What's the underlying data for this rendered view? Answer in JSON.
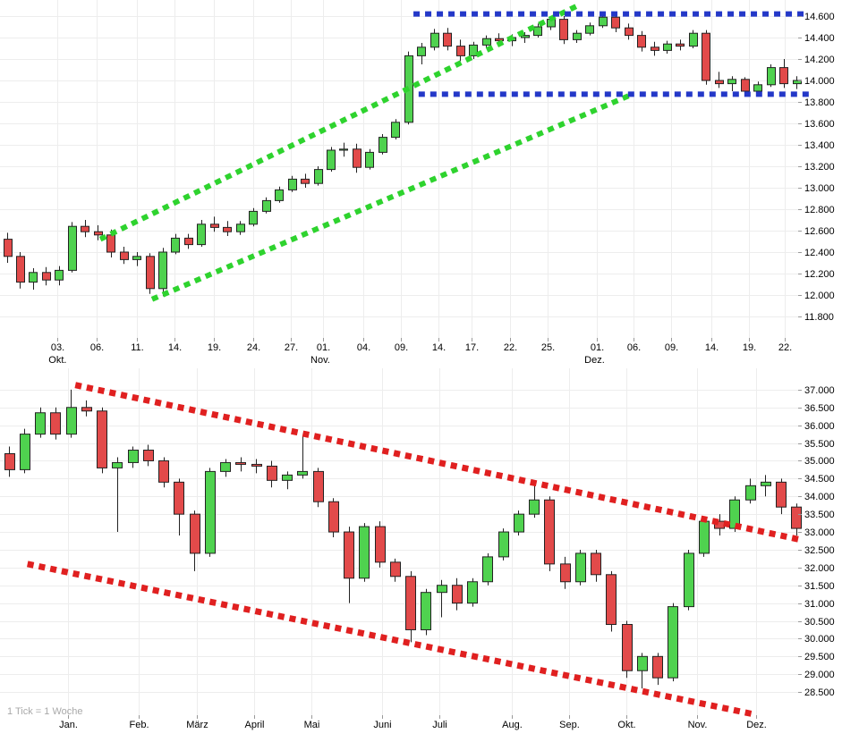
{
  "background": "#ffffff",
  "chart_data": [
    {
      "type": "candlestick",
      "name": "upper-chart",
      "title": "",
      "ylim": [
        11650,
        14750
      ],
      "grid": true,
      "y_axis_side": "right",
      "y_ticks": [
        "14.600",
        "14.400",
        "14.200",
        "14.000",
        "13.800",
        "13.600",
        "13.400",
        "13.200",
        "13.000",
        "12.800",
        "12.600",
        "12.400",
        "12.200",
        "12.000",
        "11.800"
      ],
      "x_ticks": [
        {
          "label": "03.",
          "i": 3.9
        },
        {
          "label": "06.",
          "i": 6.9
        },
        {
          "label": "11.",
          "i": 10.0
        },
        {
          "label": "14.",
          "i": 12.9
        },
        {
          "label": "19.",
          "i": 16.0
        },
        {
          "label": "24.",
          "i": 19.0
        },
        {
          "label": "27.",
          "i": 21.9
        },
        {
          "label": "01.",
          "i": 24.4
        },
        {
          "label": "04.",
          "i": 27.5
        },
        {
          "label": "09.",
          "i": 30.4
        },
        {
          "label": "14.",
          "i": 33.3
        },
        {
          "label": "17.",
          "i": 35.9
        },
        {
          "label": "22.",
          "i": 38.9
        },
        {
          "label": "25.",
          "i": 41.8
        },
        {
          "label": "01.",
          "i": 45.6
        },
        {
          "label": "06.",
          "i": 48.4
        },
        {
          "label": "09.",
          "i": 51.3
        },
        {
          "label": "14.",
          "i": 54.4
        },
        {
          "label": "19.",
          "i": 57.3
        },
        {
          "label": "22.",
          "i": 60.1
        }
      ],
      "month_labels": [
        {
          "label": "Okt.",
          "i": 3.9
        },
        {
          "label": "Nov.",
          "i": 24.2
        },
        {
          "label": "Dez.",
          "i": 45.4
        }
      ],
      "colors": {
        "up": "#4fd24f",
        "down": "#e24a4a"
      },
      "candles": [
        [
          12520,
          12580,
          12300,
          12360
        ],
        [
          12360,
          12400,
          12060,
          12120
        ],
        [
          12120,
          12250,
          12050,
          12210
        ],
        [
          12210,
          12260,
          12090,
          12140
        ],
        [
          12140,
          12270,
          12090,
          12230
        ],
        [
          12230,
          12680,
          12210,
          12640
        ],
        [
          12640,
          12700,
          12540,
          12590
        ],
        [
          12590,
          12650,
          12510,
          12560
        ],
        [
          12560,
          12610,
          12350,
          12400
        ],
        [
          12400,
          12450,
          12290,
          12330
        ],
        [
          12330,
          12400,
          12270,
          12360
        ],
        [
          12360,
          12390,
          12010,
          12060
        ],
        [
          12060,
          12440,
          11990,
          12400
        ],
        [
          12400,
          12570,
          12380,
          12530
        ],
        [
          12530,
          12570,
          12430,
          12470
        ],
        [
          12470,
          12700,
          12450,
          12660
        ],
        [
          12660,
          12730,
          12590,
          12630
        ],
        [
          12630,
          12690,
          12550,
          12590
        ],
        [
          12590,
          12690,
          12560,
          12660
        ],
        [
          12660,
          12810,
          12640,
          12780
        ],
        [
          12780,
          12910,
          12760,
          12880
        ],
        [
          12880,
          13010,
          12860,
          12980
        ],
        [
          12980,
          13110,
          12960,
          13080
        ],
        [
          13080,
          13130,
          13000,
          13040
        ],
        [
          13040,
          13200,
          13020,
          13170
        ],
        [
          13170,
          13380,
          13150,
          13350
        ],
        [
          13350,
          13420,
          13290,
          13360
        ],
        [
          13360,
          13410,
          13140,
          13190
        ],
        [
          13190,
          13360,
          13170,
          13330
        ],
        [
          13330,
          13500,
          13310,
          13470
        ],
        [
          13470,
          13640,
          13450,
          13610
        ],
        [
          13610,
          14270,
          13590,
          14230
        ],
        [
          14230,
          14350,
          14150,
          14310
        ],
        [
          14310,
          14480,
          14280,
          14440
        ],
        [
          14440,
          14490,
          14280,
          14320
        ],
        [
          14320,
          14380,
          14180,
          14230
        ],
        [
          14230,
          14360,
          14200,
          14330
        ],
        [
          14330,
          14420,
          14300,
          14390
        ],
        [
          14390,
          14440,
          14330,
          14370
        ],
        [
          14370,
          14430,
          14320,
          14400
        ],
        [
          14400,
          14450,
          14350,
          14420
        ],
        [
          14420,
          14530,
          14400,
          14500
        ],
        [
          14500,
          14600,
          14470,
          14570
        ],
        [
          14570,
          14600,
          14340,
          14380
        ],
        [
          14380,
          14470,
          14350,
          14440
        ],
        [
          14440,
          14540,
          14420,
          14510
        ],
        [
          14510,
          14620,
          14490,
          14590
        ],
        [
          14590,
          14620,
          14450,
          14490
        ],
        [
          14490,
          14530,
          14380,
          14420
        ],
        [
          14420,
          14460,
          14270,
          14310
        ],
        [
          14310,
          14360,
          14230,
          14280
        ],
        [
          14280,
          14370,
          14250,
          14340
        ],
        [
          14340,
          14380,
          14280,
          14320
        ],
        [
          14320,
          14470,
          14300,
          14440
        ],
        [
          14440,
          14470,
          13960,
          14000
        ],
        [
          14000,
          14080,
          13930,
          13970
        ],
        [
          13970,
          14040,
          13900,
          14010
        ],
        [
          14010,
          14030,
          13860,
          13900
        ],
        [
          13900,
          13990,
          13870,
          13960
        ],
        [
          13960,
          14150,
          13940,
          14120
        ],
        [
          14120,
          14200,
          13930,
          13970
        ],
        [
          13970,
          14040,
          13920,
          14000
        ]
      ],
      "trendlines": [
        {
          "name": "ascending-channel-upper-line",
          "color": "#2ed32e",
          "width": 6,
          "from": [
            7.2,
            12520
          ],
          "to": [
            44.3,
            14710
          ]
        },
        {
          "name": "ascending-channel-lower-line",
          "color": "#2ed32e",
          "width": 6,
          "from": [
            11.2,
            11960
          ],
          "to": [
            48.1,
            13860
          ]
        },
        {
          "name": "horizontal-resistance-line",
          "color": "#2438c8",
          "width": 6,
          "from": [
            31.4,
            14620
          ],
          "to": [
            61.8,
            14620
          ]
        },
        {
          "name": "horizontal-support-line",
          "color": "#2438c8",
          "width": 6,
          "from": [
            31.8,
            13872
          ],
          "to": [
            62.2,
            13872
          ]
        }
      ]
    },
    {
      "type": "candlestick",
      "name": "lower-chart",
      "title": "",
      "tick_label": "1 Tick = 1 Woche",
      "ylim": [
        28000,
        37600
      ],
      "grid": true,
      "y_axis_side": "right",
      "y_ticks": [
        "37.000",
        "36.500",
        "36.000",
        "35.500",
        "35.000",
        "34.500",
        "34.000",
        "33.500",
        "33.000",
        "32.500",
        "32.000",
        "31.500",
        "31.000",
        "30.500",
        "30.000",
        "29.500",
        "29.000",
        "28.500"
      ],
      "x_ticks": [
        {
          "label": "Jan.",
          "i": 3.8
        },
        {
          "label": "Feb.",
          "i": 8.4
        },
        {
          "label": "März",
          "i": 12.2
        },
        {
          "label": "April",
          "i": 15.9
        },
        {
          "label": "Mai",
          "i": 19.6
        },
        {
          "label": "Juni",
          "i": 24.2
        },
        {
          "label": "Juli",
          "i": 27.9
        },
        {
          "label": "Aug.",
          "i": 32.6
        },
        {
          "label": "Sep.",
          "i": 36.3
        },
        {
          "label": "Okt.",
          "i": 40.0
        },
        {
          "label": "Nov.",
          "i": 44.6
        },
        {
          "label": "Dez.",
          "i": 48.4
        }
      ],
      "month_labels": [],
      "colors": {
        "up": "#4fd24f",
        "down": "#e24a4a"
      },
      "candles": [
        [
          35200,
          35400,
          34550,
          34750
        ],
        [
          34750,
          35900,
          34650,
          35750
        ],
        [
          35750,
          36500,
          35650,
          36350
        ],
        [
          36350,
          36500,
          35600,
          35750
        ],
        [
          35750,
          37000,
          35650,
          36500
        ],
        [
          36500,
          36700,
          36250,
          36400
        ],
        [
          36400,
          36500,
          34650,
          34800
        ],
        [
          34800,
          35100,
          33000,
          34950
        ],
        [
          34950,
          35400,
          34800,
          35300
        ],
        [
          35300,
          35450,
          34850,
          35000
        ],
        [
          35000,
          35100,
          34250,
          34400
        ],
        [
          34400,
          34500,
          32900,
          33500
        ],
        [
          33500,
          33600,
          31900,
          32400
        ],
        [
          32400,
          34800,
          32300,
          34700
        ],
        [
          34700,
          35050,
          34550,
          34950
        ],
        [
          34950,
          35100,
          34700,
          34900
        ],
        [
          34900,
          35050,
          34650,
          34850
        ],
        [
          34850,
          35000,
          34250,
          34450
        ],
        [
          34450,
          34700,
          34200,
          34600
        ],
        [
          34600,
          35700,
          34500,
          34700
        ],
        [
          34700,
          34800,
          33700,
          33850
        ],
        [
          33850,
          33950,
          32850,
          33000
        ],
        [
          33000,
          33150,
          31000,
          31700
        ],
        [
          31700,
          33250,
          31600,
          33150
        ],
        [
          33150,
          33300,
          32000,
          32150
        ],
        [
          32150,
          32250,
          31600,
          31750
        ],
        [
          31750,
          31900,
          29900,
          30250
        ],
        [
          30250,
          31400,
          30100,
          31300
        ],
        [
          31300,
          31650,
          30600,
          31500
        ],
        [
          31500,
          31700,
          30800,
          31000
        ],
        [
          31000,
          31700,
          30900,
          31600
        ],
        [
          31600,
          32400,
          31500,
          32300
        ],
        [
          32300,
          33100,
          32200,
          33000
        ],
        [
          33000,
          33600,
          32900,
          33500
        ],
        [
          33500,
          34400,
          33400,
          33900
        ],
        [
          33900,
          34000,
          31900,
          32100
        ],
        [
          32100,
          32300,
          31400,
          31600
        ],
        [
          31600,
          32500,
          31500,
          32400
        ],
        [
          32400,
          32500,
          31600,
          31800
        ],
        [
          31800,
          31900,
          30200,
          30400
        ],
        [
          30400,
          30500,
          28900,
          29100
        ],
        [
          29100,
          29600,
          28600,
          29500
        ],
        [
          29500,
          29600,
          28700,
          28900
        ],
        [
          28900,
          31000,
          28800,
          30900
        ],
        [
          30900,
          32500,
          30800,
          32400
        ],
        [
          32400,
          33400,
          32300,
          33300
        ],
        [
          33300,
          33500,
          32900,
          33100
        ],
        [
          33100,
          34000,
          33000,
          33900
        ],
        [
          33900,
          34500,
          33800,
          34300
        ],
        [
          34300,
          34600,
          34000,
          34400
        ],
        [
          34400,
          34500,
          33500,
          33700
        ],
        [
          33700,
          33800,
          32900,
          33100
        ]
      ],
      "trendlines": [
        {
          "name": "descending-channel-upper-line",
          "color": "#e02020",
          "width": 7,
          "from": [
            4.3,
            37130
          ],
          "to": [
            51.3,
            32780
          ]
        },
        {
          "name": "descending-channel-lower-line",
          "color": "#e02020",
          "width": 7,
          "from": [
            1.2,
            32100
          ],
          "to": [
            48.2,
            27880
          ]
        }
      ]
    }
  ]
}
